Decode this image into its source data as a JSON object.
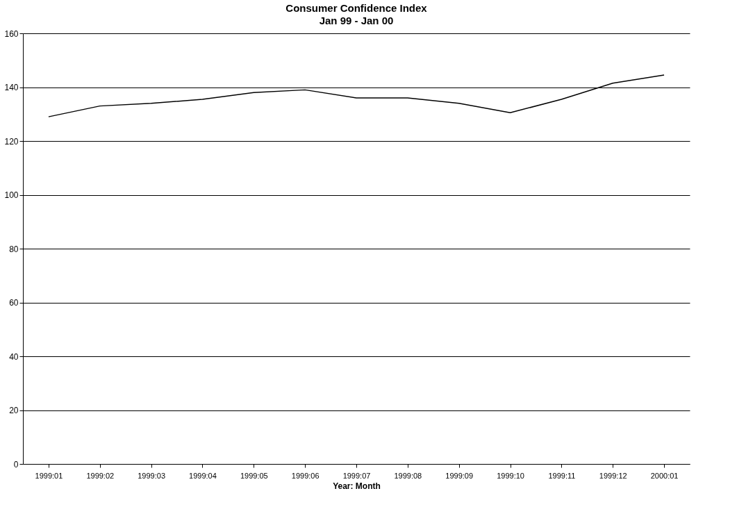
{
  "chart_data": {
    "type": "line",
    "title": "Consumer Confidence Index",
    "subtitle": "Jan 99 - Jan 00",
    "xlabel": "Year: Month",
    "categories": [
      "1999:01",
      "1999:02",
      "1999:03",
      "1999:04",
      "1999:05",
      "1999:06",
      "1999:07",
      "1999:08",
      "1999:09",
      "1999:10",
      "1999:11",
      "1999:12",
      "2000:01"
    ],
    "series": [
      {
        "color": "#000000",
        "values": [
          129,
          133,
          134,
          135.5,
          138,
          139,
          136,
          136,
          134,
          130.5,
          135.5,
          141.5,
          144.5
        ]
      }
    ],
    "ylim": [
      0,
      160
    ],
    "yticks": [
      0,
      20,
      40,
      60,
      80,
      100,
      120,
      140,
      160
    ],
    "grid": "y",
    "marker": "none",
    "line_style": "solid"
  }
}
